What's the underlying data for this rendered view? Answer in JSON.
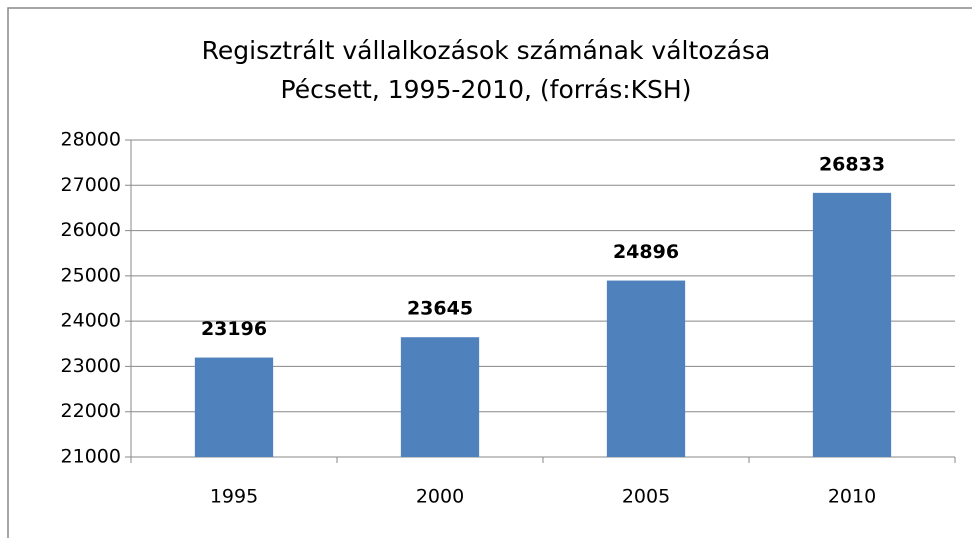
{
  "chart_data": {
    "type": "bar",
    "title": [
      "Regisztrált vállalkozások számának változása",
      "Pécsett, 1995-2010, (forrás:KSH)"
    ],
    "categories": [
      "1995",
      "2000",
      "2005",
      "2010"
    ],
    "values": [
      23196,
      23645,
      24896,
      26833
    ],
    "color": "#4f81bd",
    "ylim": [
      21000,
      28000
    ],
    "yticks": [
      21000,
      22000,
      23000,
      24000,
      25000,
      26000,
      27000,
      28000
    ],
    "grid": true
  }
}
